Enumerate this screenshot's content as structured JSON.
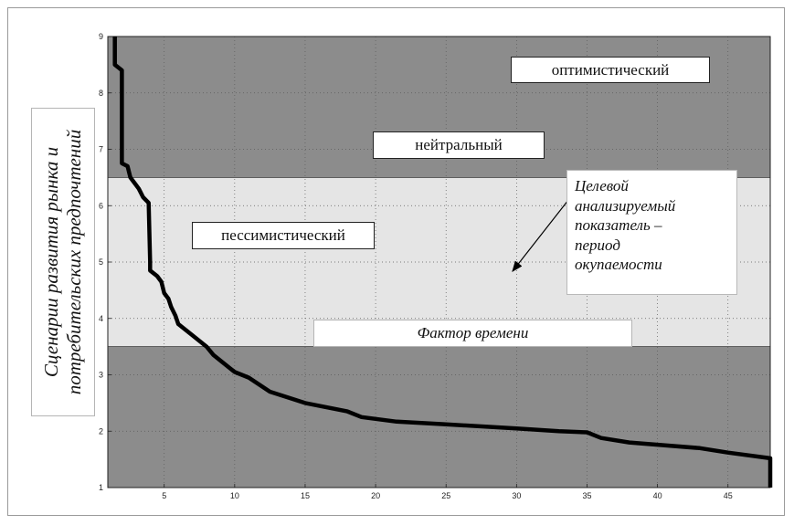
{
  "chart_data": {
    "type": "line",
    "xlim": [
      1,
      48
    ],
    "ylim": [
      1,
      9
    ],
    "x_ticks": [
      "5",
      "10",
      "15",
      "20",
      "25",
      "30",
      "35",
      "40",
      "45"
    ],
    "y_ticks": [
      "1",
      "2",
      "3",
      "4",
      "5",
      "6",
      "7",
      "8",
      "9"
    ],
    "ylabel": [
      "Сценарии развития рынка и",
      "потребительских предпочтений"
    ],
    "grid": true,
    "bands": [
      {
        "from": 6.5,
        "to": 9,
        "color": "#8c8c8c"
      },
      {
        "from": 3.5,
        "to": 6.5,
        "color": "#e5e5e5"
      },
      {
        "from": 1,
        "to": 3.5,
        "color": "#8c8c8c"
      }
    ],
    "region_labels": {
      "optimistic": "оптимистический",
      "neutral": "нейтральный",
      "pessimistic": "пессимистический",
      "time_factor": "Фактор времени"
    },
    "annotation": [
      "Целевой",
      "анализируемый",
      "показатель –",
      "период",
      "окупаемости"
    ],
    "series": [
      {
        "line_color": "#000000",
        "points": [
          [
            1.5,
            9.0
          ],
          [
            1.5,
            8.5
          ],
          [
            2.0,
            8.4
          ],
          [
            2.0,
            6.75
          ],
          [
            2.4,
            6.7
          ],
          [
            2.6,
            6.5
          ],
          [
            2.9,
            6.4
          ],
          [
            3.2,
            6.3
          ],
          [
            3.5,
            6.15
          ],
          [
            3.9,
            6.05
          ],
          [
            4.0,
            5.0
          ],
          [
            4.0,
            4.85
          ],
          [
            4.5,
            4.75
          ],
          [
            4.8,
            4.65
          ],
          [
            5.0,
            4.45
          ],
          [
            5.3,
            4.35
          ],
          [
            5.5,
            4.2
          ],
          [
            5.8,
            4.05
          ],
          [
            6.0,
            3.9
          ],
          [
            7.0,
            3.7
          ],
          [
            8.0,
            3.5
          ],
          [
            8.5,
            3.35
          ],
          [
            10.0,
            3.05
          ],
          [
            11.0,
            2.95
          ],
          [
            12.5,
            2.7
          ],
          [
            15.0,
            2.5
          ],
          [
            18.0,
            2.35
          ],
          [
            19.0,
            2.25
          ],
          [
            21.5,
            2.17
          ],
          [
            25.0,
            2.12
          ],
          [
            30.0,
            2.05
          ],
          [
            33.0,
            2.0
          ],
          [
            35.0,
            1.98
          ],
          [
            36.0,
            1.88
          ],
          [
            38.0,
            1.8
          ],
          [
            43.0,
            1.7
          ],
          [
            45.0,
            1.62
          ],
          [
            48.0,
            1.52
          ],
          [
            48.0,
            1.0
          ]
        ]
      }
    ]
  }
}
